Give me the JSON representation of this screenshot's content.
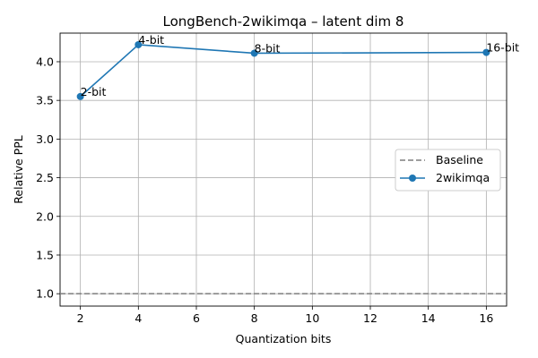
{
  "chart_data": {
    "type": "line",
    "title": "LongBench-2wikimqa – latent dim 8",
    "xlabel": "Quantization bits",
    "ylabel": "Relative PPL",
    "xlim": [
      1.3,
      16.7
    ],
    "ylim": [
      0.84,
      4.37
    ],
    "xticks": [
      "2",
      "4",
      "6",
      "8",
      "10",
      "12",
      "14",
      "16"
    ],
    "yticks": [
      "1.0",
      "1.5",
      "2.0",
      "2.5",
      "3.0",
      "3.5",
      "4.0"
    ],
    "grid": true,
    "legend_position": "center-right",
    "baseline": {
      "name": "Baseline",
      "y": 1.0,
      "color": "#7f7f7f",
      "style": "dashed"
    },
    "series": [
      {
        "name": "2wikimqa",
        "color": "#1f77b4",
        "x": [
          2,
          4,
          8,
          16
        ],
        "values": [
          3.55,
          4.22,
          4.11,
          4.12
        ],
        "point_labels": [
          "2-bit",
          "4-bit",
          "8-bit",
          "16-bit"
        ]
      }
    ]
  }
}
